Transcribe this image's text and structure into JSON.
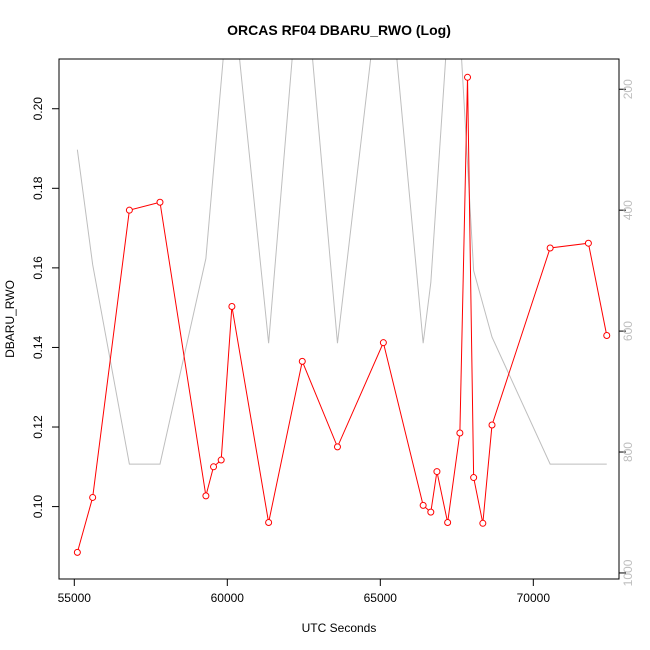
{
  "chart_data": {
    "type": "line",
    "title": "ORCAS RF04 DBARU_RWO (Log)",
    "xlabel": "UTC Seconds",
    "ylabel": "DBARU_RWO",
    "y2label": "",
    "xlim": [
      54500,
      72800
    ],
    "ylim": [
      0.0818,
      0.2125
    ],
    "y2lim": [
      1010,
      150
    ],
    "y2_reversed": true,
    "xticks": [
      55000,
      60000,
      65000,
      70000
    ],
    "xtick_labels": [
      "55000",
      "60000",
      "65000",
      "70000"
    ],
    "yticks": [
      0.1,
      0.12,
      0.14,
      0.16,
      0.18,
      0.2
    ],
    "ytick_labels": [
      "0.10",
      "0.12",
      "0.14",
      "0.16",
      "0.18",
      "0.20"
    ],
    "y2ticks": [
      200,
      400,
      600,
      800,
      1000
    ],
    "y2tick_labels": [
      "200",
      "400",
      "600",
      "800",
      "1000"
    ],
    "grid": false,
    "legend": "none",
    "colors": {
      "primary": "#ff0000",
      "secondary": "#bebebe",
      "axis": "#000000"
    },
    "series": [
      {
        "axis": "left",
        "style": "line+markers",
        "x": [
          55100,
          55600,
          56800,
          57800,
          59300,
          59550,
          59800,
          60150,
          61350,
          62450,
          63600,
          65100,
          66400,
          66650,
          66850,
          67200,
          67600,
          67850,
          68050,
          68350,
          68650,
          70550,
          71800,
          72400
        ],
        "y": [
          0.0885,
          0.1023,
          0.1745,
          0.1765,
          0.1027,
          0.11,
          0.1117,
          0.1503,
          0.096,
          0.1365,
          0.115,
          0.1412,
          0.1003,
          0.0986,
          0.1088,
          0.096,
          0.1185,
          0.2079,
          0.1073,
          0.0958,
          0.1205,
          0.165,
          0.1662,
          0.143
        ]
      },
      {
        "axis": "right",
        "style": "line",
        "x": [
          55100,
          55600,
          56800,
          57800,
          59300,
          59950,
          60300,
          61350,
          62200,
          62700,
          63600,
          64800,
          65450,
          66400,
          66650,
          67200,
          67600,
          68050,
          68650,
          70550,
          71800,
          72400
        ],
        "y": [
          300,
          490,
          820,
          820,
          480,
          100,
          100,
          620,
          100,
          100,
          620,
          100,
          100,
          620,
          520,
          100,
          100,
          500,
          610,
          820,
          820,
          820
        ]
      }
    ]
  }
}
